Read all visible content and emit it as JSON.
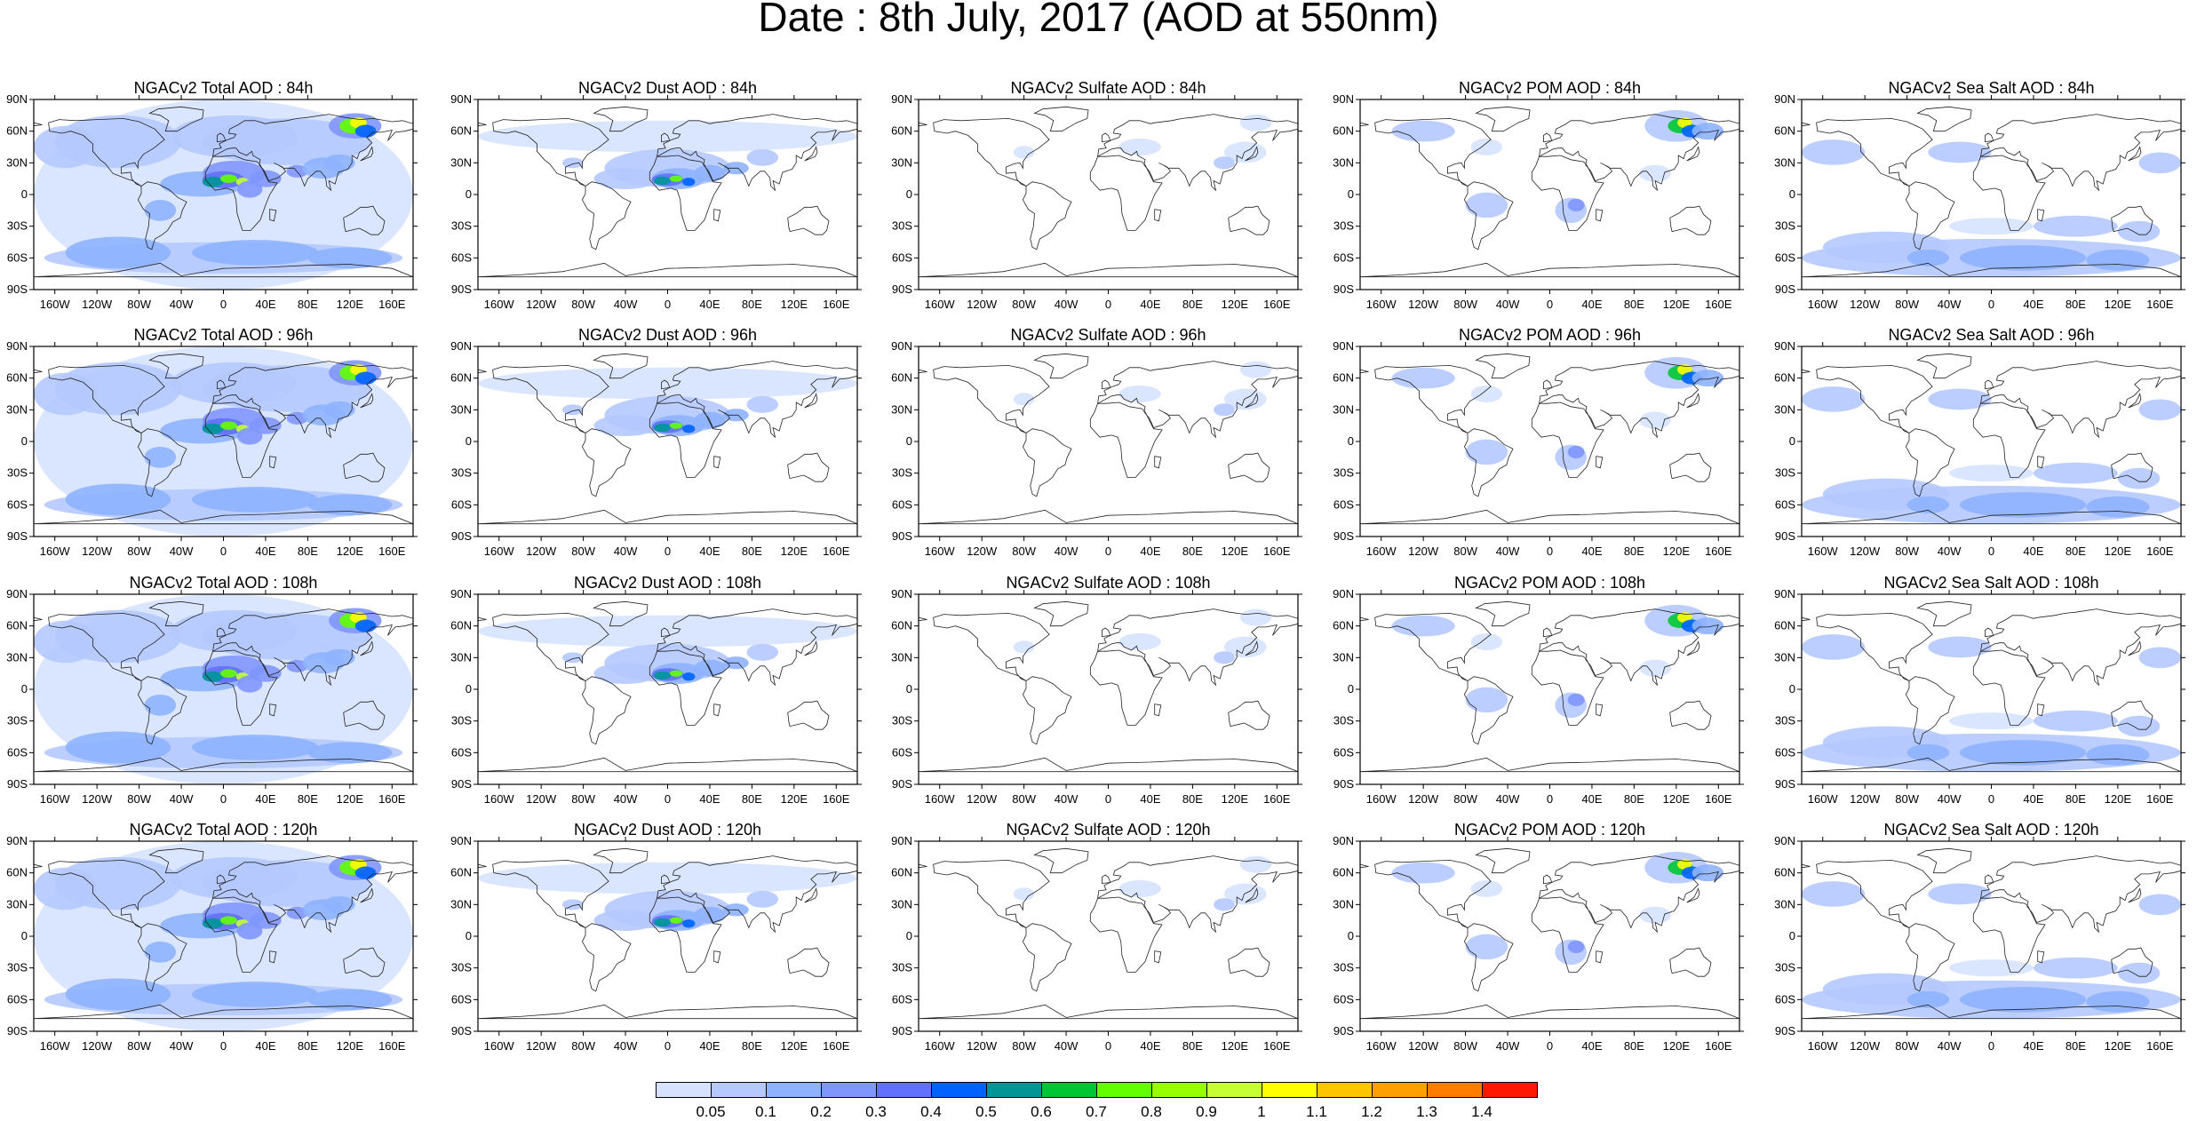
{
  "title": "Date : 8th July, 2017 (AOD at 550nm)",
  "lat_labels": [
    "90N",
    "60N",
    "30N",
    "0",
    "30S",
    "60S",
    "90S"
  ],
  "lon_labels": [
    "160W",
    "120W",
    "80W",
    "40W",
    "0",
    "40E",
    "80E",
    "120E",
    "160E"
  ],
  "species": [
    {
      "key": "total",
      "name": "NGACv2 Total AOD"
    },
    {
      "key": "dust",
      "name": "NGACv2 Dust AOD"
    },
    {
      "key": "sulfate",
      "name": "NGACv2 Sulfate AOD"
    },
    {
      "key": "pom",
      "name": "NGACv2 POM AOD"
    },
    {
      "key": "seasalt",
      "name": "NGACv2 Sea Salt AOD"
    }
  ],
  "panels": [
    {
      "title": "NGACv2 Total AOD : 84h",
      "species": "total",
      "hour": "84h"
    },
    {
      "title": "NGACv2 Dust AOD : 84h",
      "species": "dust",
      "hour": "84h"
    },
    {
      "title": "NGACv2 Sulfate AOD : 84h",
      "species": "sulfate",
      "hour": "84h"
    },
    {
      "title": "NGACv2 POM AOD : 84h",
      "species": "pom",
      "hour": "84h"
    },
    {
      "title": "NGACv2 Sea Salt AOD : 84h",
      "species": "seasalt",
      "hour": "84h"
    },
    {
      "title": "NGACv2 Total AOD : 96h",
      "species": "total",
      "hour": "96h"
    },
    {
      "title": "NGACv2 Dust AOD : 96h",
      "species": "dust",
      "hour": "96h"
    },
    {
      "title": "NGACv2 Sulfate AOD : 96h",
      "species": "sulfate",
      "hour": "96h"
    },
    {
      "title": "NGACv2 POM AOD : 96h",
      "species": "pom",
      "hour": "96h"
    },
    {
      "title": "NGACv2 Sea Salt AOD : 96h",
      "species": "seasalt",
      "hour": "96h"
    },
    {
      "title": "NGACv2 Total AOD : 108h",
      "species": "total",
      "hour": "108h"
    },
    {
      "title": "NGACv2 Dust AOD : 108h",
      "species": "dust",
      "hour": "108h"
    },
    {
      "title": "NGACv2 Sulfate AOD : 108h",
      "species": "sulfate",
      "hour": "108h"
    },
    {
      "title": "NGACv2 POM AOD : 108h",
      "species": "pom",
      "hour": "108h"
    },
    {
      "title": "NGACv2 Sea Salt AOD : 108h",
      "species": "seasalt",
      "hour": "108h"
    },
    {
      "title": "NGACv2 Total AOD : 120h",
      "species": "total",
      "hour": "120h"
    },
    {
      "title": "NGACv2 Dust AOD : 120h",
      "species": "dust",
      "hour": "120h"
    },
    {
      "title": "NGACv2 Sulfate AOD : 120h",
      "species": "sulfate",
      "hour": "120h"
    },
    {
      "title": "NGACv2 POM AOD : 120h",
      "species": "pom",
      "hour": "120h"
    },
    {
      "title": "NGACv2 Sea Salt  AOD : 120h",
      "species": "seasalt",
      "hour": "120h"
    }
  ],
  "colorbar": {
    "labels": [
      "0.05",
      "0.1",
      "0.2",
      "0.3",
      "0.4",
      "0.5",
      "0.6",
      "0.7",
      "0.8",
      "0.9",
      "1",
      "1.1",
      "1.2",
      "1.3",
      "1.4"
    ],
    "colors": [
      "#ffffff",
      "#d6e2ff",
      "#b5c9ff",
      "#8eb2ff",
      "#7f96ff",
      "#6370ff",
      "#0063ff",
      "#009696",
      "#00c633",
      "#63ff00",
      "#96ff00",
      "#c6ff33",
      "#ffff00",
      "#ffc600",
      "#ffa000",
      "#ff7c00",
      "#ff1900"
    ]
  }
}
